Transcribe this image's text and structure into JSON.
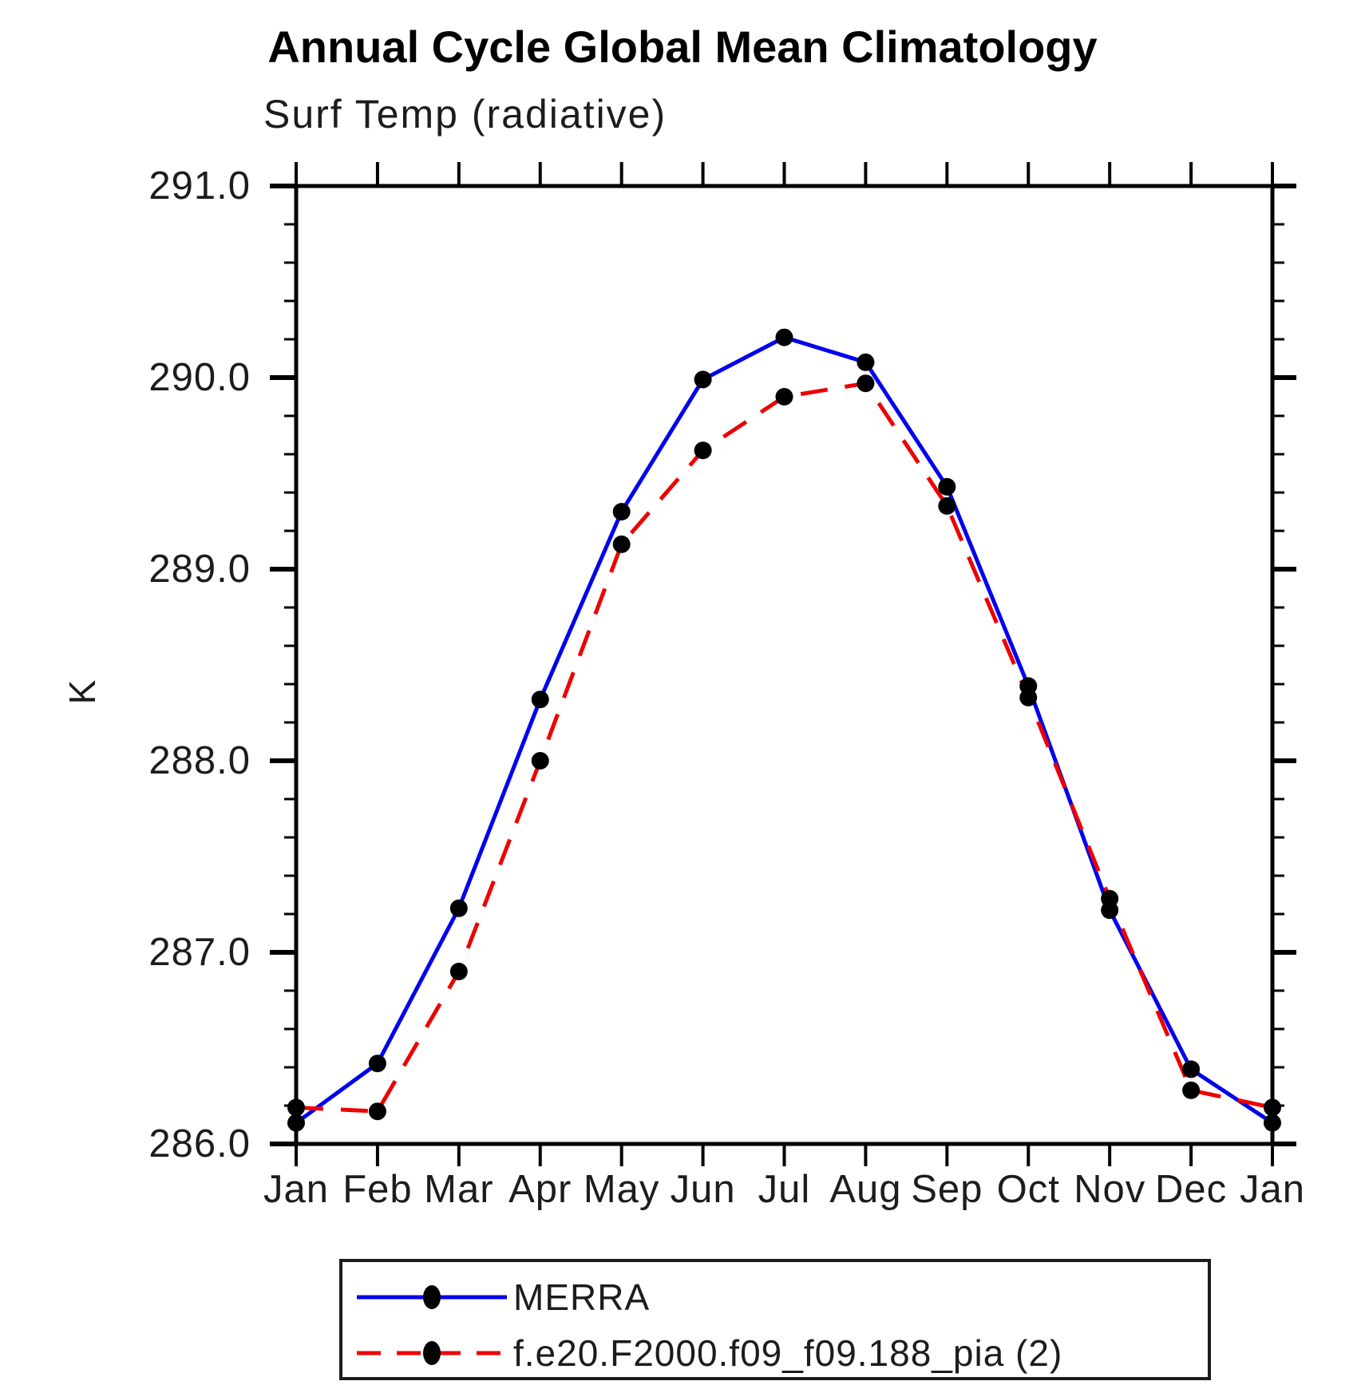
{
  "chart_data": {
    "type": "line",
    "title": "Annual Cycle Global Mean Climatology",
    "subtitle": "Surf Temp (radiative)",
    "ylabel": "K",
    "categories": [
      "Jan",
      "Feb",
      "Mar",
      "Apr",
      "May",
      "Jun",
      "Jul",
      "Aug",
      "Sep",
      "Oct",
      "Nov",
      "Dec",
      "Jan"
    ],
    "ylim": [
      286.0,
      291.0
    ],
    "ytick_interval": 1.0,
    "yminor_interval": 0.2,
    "ytick_labels": [
      "286.0",
      "287.0",
      "288.0",
      "289.0",
      "290.0",
      "291.0"
    ],
    "grid": false,
    "legend_position": "bottom",
    "marker": {
      "shape": "circle",
      "color": "#000000"
    },
    "axis_color": "#000000",
    "series": [
      {
        "name": "MERRA",
        "color": "#0000ee",
        "line_style": "solid",
        "values": [
          286.11,
          286.42,
          287.23,
          288.32,
          289.3,
          289.99,
          290.21,
          290.08,
          289.43,
          288.39,
          287.22,
          286.39,
          286.11
        ]
      },
      {
        "name": "f.e20.F2000.f09_f09.188_pia (2)",
        "color": "#ee0000",
        "line_style": "dashed",
        "values": [
          286.19,
          286.17,
          286.9,
          288.0,
          289.13,
          289.62,
          289.9,
          289.97,
          289.33,
          288.33,
          287.28,
          286.28,
          286.19
        ]
      }
    ]
  }
}
